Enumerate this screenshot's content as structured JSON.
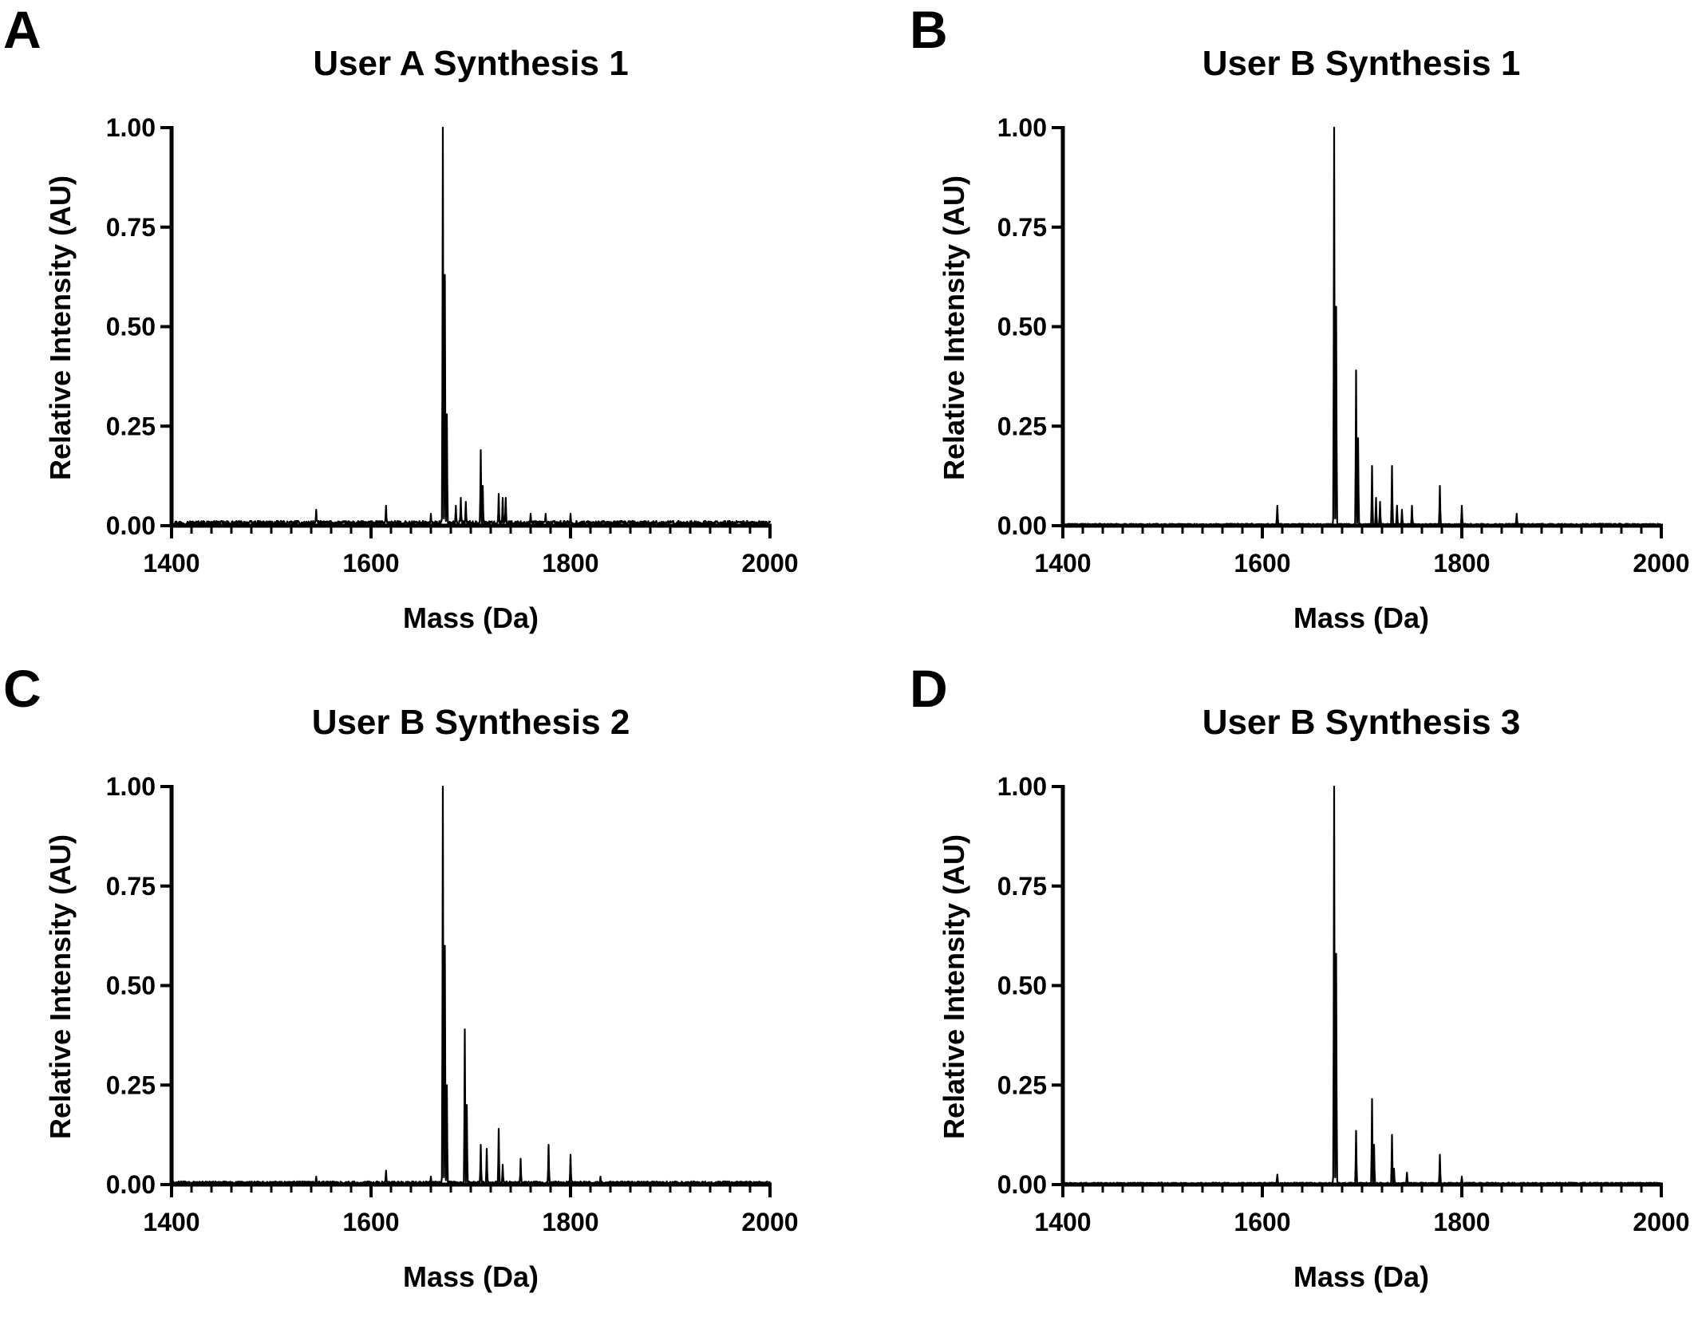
{
  "chart_data": [
    {
      "type": "line",
      "panel_label": "A",
      "title": "User A Synthesis 1",
      "xlabel": "Mass (Da)",
      "ylabel": "Relative Intensity (AU)",
      "xlim": [
        1400,
        2000
      ],
      "ylim": [
        0,
        1
      ],
      "xticks": [
        "1400",
        "1600",
        "1800",
        "2000"
      ],
      "yticks": [
        "0.00",
        "0.25",
        "0.50",
        "0.75",
        "1.00"
      ],
      "grid": false,
      "series": [
        {
          "color": "#000000",
          "baseline": 0.012,
          "peaks": [
            {
              "x": 1545,
              "y": 0.04
            },
            {
              "x": 1615,
              "y": 0.05
            },
            {
              "x": 1660,
              "y": 0.03
            },
            {
              "x": 1672,
              "y": 1.0
            },
            {
              "x": 1674,
              "y": 0.63
            },
            {
              "x": 1676,
              "y": 0.28
            },
            {
              "x": 1685,
              "y": 0.05
            },
            {
              "x": 1690,
              "y": 0.07
            },
            {
              "x": 1695,
              "y": 0.06
            },
            {
              "x": 1710,
              "y": 0.19
            },
            {
              "x": 1712,
              "y": 0.1
            },
            {
              "x": 1728,
              "y": 0.08
            },
            {
              "x": 1732,
              "y": 0.07
            },
            {
              "x": 1735,
              "y": 0.07
            },
            {
              "x": 1760,
              "y": 0.03
            },
            {
              "x": 1775,
              "y": 0.03
            },
            {
              "x": 1800,
              "y": 0.03
            }
          ]
        }
      ]
    },
    {
      "type": "line",
      "panel_label": "B",
      "title": "User B Synthesis 1",
      "xlabel": "Mass (Da)",
      "ylabel": "Relative Intensity (AU)",
      "xlim": [
        1400,
        2000
      ],
      "ylim": [
        0,
        1
      ],
      "xticks": [
        "1400",
        "1600",
        "1800",
        "2000"
      ],
      "yticks": [
        "0.00",
        "0.25",
        "0.50",
        "0.75",
        "1.00"
      ],
      "grid": false,
      "series": [
        {
          "color": "#000000",
          "baseline": 0.005,
          "peaks": [
            {
              "x": 1615,
              "y": 0.05
            },
            {
              "x": 1672,
              "y": 1.0
            },
            {
              "x": 1674,
              "y": 0.55
            },
            {
              "x": 1694,
              "y": 0.39
            },
            {
              "x": 1696,
              "y": 0.22
            },
            {
              "x": 1710,
              "y": 0.15
            },
            {
              "x": 1714,
              "y": 0.07
            },
            {
              "x": 1718,
              "y": 0.06
            },
            {
              "x": 1730,
              "y": 0.15
            },
            {
              "x": 1735,
              "y": 0.05
            },
            {
              "x": 1740,
              "y": 0.04
            },
            {
              "x": 1750,
              "y": 0.05
            },
            {
              "x": 1778,
              "y": 0.1
            },
            {
              "x": 1800,
              "y": 0.05
            },
            {
              "x": 1855,
              "y": 0.03
            }
          ]
        }
      ]
    },
    {
      "type": "line",
      "panel_label": "C",
      "title": "User B Synthesis 2",
      "xlabel": "Mass (Da)",
      "ylabel": "Relative Intensity (AU)",
      "xlim": [
        1400,
        2000
      ],
      "ylim": [
        0,
        1
      ],
      "xticks": [
        "1400",
        "1600",
        "1800",
        "2000"
      ],
      "yticks": [
        "0.00",
        "0.25",
        "0.50",
        "0.75",
        "1.00"
      ],
      "grid": false,
      "series": [
        {
          "color": "#000000",
          "baseline": 0.008,
          "peaks": [
            {
              "x": 1545,
              "y": 0.02
            },
            {
              "x": 1615,
              "y": 0.035
            },
            {
              "x": 1660,
              "y": 0.02
            },
            {
              "x": 1672,
              "y": 1.0
            },
            {
              "x": 1674,
              "y": 0.6
            },
            {
              "x": 1676,
              "y": 0.25
            },
            {
              "x": 1694,
              "y": 0.39
            },
            {
              "x": 1696,
              "y": 0.2
            },
            {
              "x": 1710,
              "y": 0.1
            },
            {
              "x": 1716,
              "y": 0.09
            },
            {
              "x": 1728,
              "y": 0.14
            },
            {
              "x": 1732,
              "y": 0.05
            },
            {
              "x": 1750,
              "y": 0.065
            },
            {
              "x": 1778,
              "y": 0.1
            },
            {
              "x": 1800,
              "y": 0.075
            },
            {
              "x": 1830,
              "y": 0.02
            }
          ]
        }
      ]
    },
    {
      "type": "line",
      "panel_label": "D",
      "title": "User B Synthesis 3",
      "xlabel": "Mass (Da)",
      "ylabel": "Relative Intensity (AU)",
      "xlim": [
        1400,
        2000
      ],
      "ylim": [
        0,
        1
      ],
      "xticks": [
        "1400",
        "1600",
        "1800",
        "2000"
      ],
      "yticks": [
        "0.00",
        "0.25",
        "0.50",
        "0.75",
        "1.00"
      ],
      "grid": false,
      "series": [
        {
          "color": "#000000",
          "baseline": 0.005,
          "peaks": [
            {
              "x": 1615,
              "y": 0.025
            },
            {
              "x": 1672,
              "y": 1.0
            },
            {
              "x": 1674,
              "y": 0.58
            },
            {
              "x": 1694,
              "y": 0.135
            },
            {
              "x": 1710,
              "y": 0.215
            },
            {
              "x": 1712,
              "y": 0.1
            },
            {
              "x": 1730,
              "y": 0.125
            },
            {
              "x": 1732,
              "y": 0.04
            },
            {
              "x": 1745,
              "y": 0.03
            },
            {
              "x": 1778,
              "y": 0.075
            },
            {
              "x": 1800,
              "y": 0.02
            }
          ]
        }
      ]
    }
  ]
}
